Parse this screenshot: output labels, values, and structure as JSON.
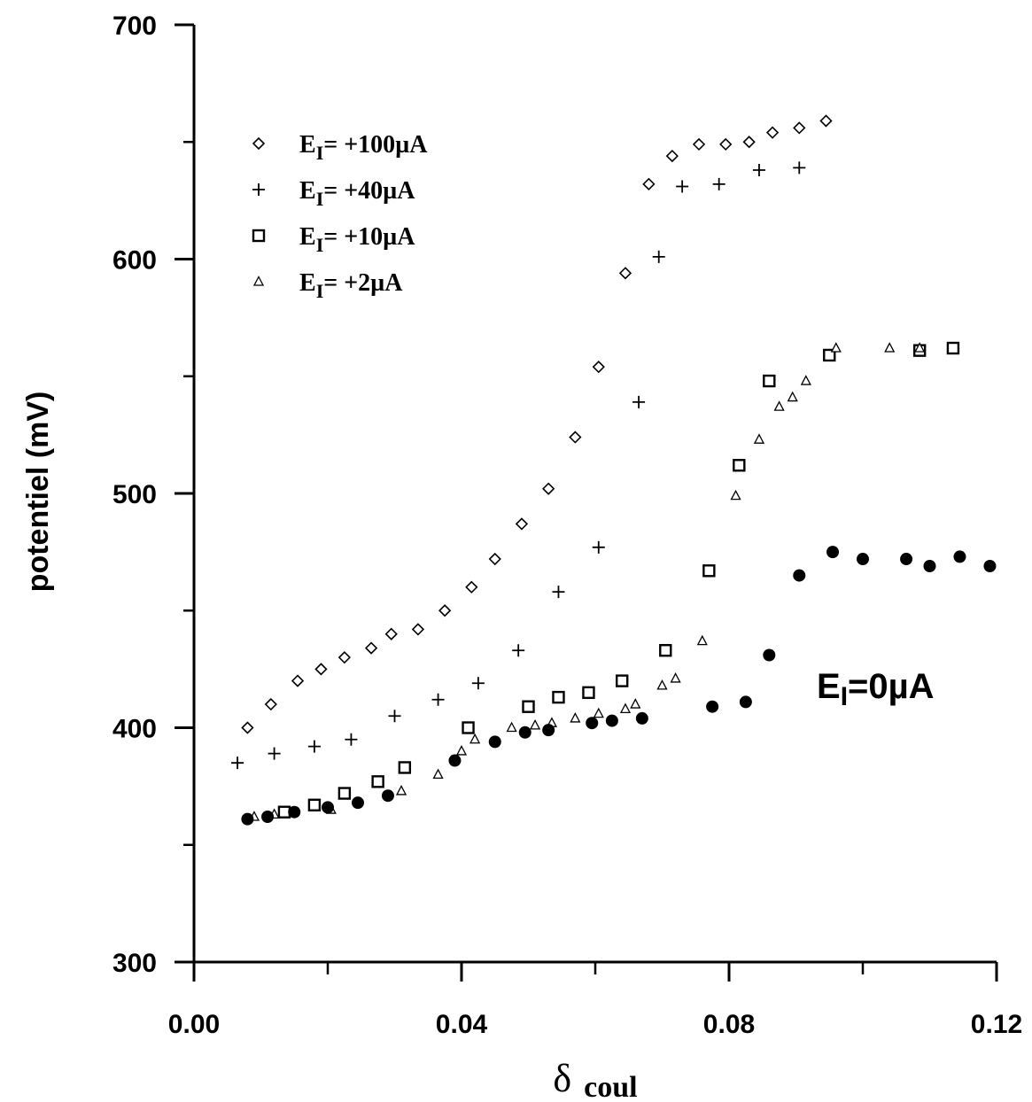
{
  "chart_data": {
    "type": "scatter",
    "title": "",
    "xlabel": "δ",
    "xlabel_sub": "coul",
    "ylabel": "potentiel (mV)",
    "xlim": [
      0.0,
      0.12
    ],
    "ylim": [
      300,
      700
    ],
    "x_major_ticks": [
      0.0,
      0.04,
      0.08,
      0.12
    ],
    "x_tick_labels": [
      "0.00",
      "0.04",
      "0.08",
      "0.12"
    ],
    "x_minor_ticks": [
      0.02,
      0.06,
      0.1
    ],
    "y_major_ticks": [
      300,
      400,
      500,
      600,
      700
    ],
    "y_tick_labels": [
      "300",
      "400",
      "500",
      "600",
      "700"
    ],
    "y_minor_ticks": [
      350,
      450,
      550,
      650
    ],
    "grid": false,
    "legend_position": "top-left",
    "series": [
      {
        "name_main": "E",
        "name_sub": "I",
        "name_rest": "= +100µA",
        "marker": "diamond",
        "x": [
          0.008,
          0.0115,
          0.0155,
          0.019,
          0.0225,
          0.0265,
          0.0295,
          0.0335,
          0.0375,
          0.0415,
          0.045,
          0.049,
          0.053,
          0.057,
          0.0605,
          0.0645,
          0.068,
          0.0715,
          0.0755,
          0.0795,
          0.083,
          0.0865,
          0.0905,
          0.0945
        ],
        "y": [
          400,
          410,
          420,
          425,
          430,
          434,
          440,
          442,
          450,
          460,
          472,
          487,
          502,
          524,
          554,
          594,
          632,
          644,
          649,
          649,
          650,
          654,
          656,
          659
        ]
      },
      {
        "name_main": "E",
        "name_sub": "I",
        "name_rest": "= +40µA",
        "marker": "plus",
        "x": [
          0.0065,
          0.012,
          0.018,
          0.0235,
          0.03,
          0.0365,
          0.0425,
          0.0485,
          0.0545,
          0.0605,
          0.0665,
          0.0695,
          0.073,
          0.0785,
          0.0845,
          0.0905
        ],
        "y": [
          385,
          389,
          392,
          395,
          405,
          412,
          419,
          433,
          458,
          477,
          539,
          601,
          631,
          632,
          638,
          639
        ]
      },
      {
        "name_main": "E",
        "name_sub": "I",
        "name_rest": "= +10µA",
        "marker": "square",
        "x": [
          0.0135,
          0.018,
          0.0225,
          0.0275,
          0.0315,
          0.041,
          0.05,
          0.0545,
          0.059,
          0.064,
          0.0705,
          0.077,
          0.0815,
          0.086,
          0.095,
          0.1085,
          0.1135
        ],
        "y": [
          364,
          367,
          372,
          377,
          383,
          400,
          409,
          413,
          415,
          420,
          433,
          467,
          512,
          548,
          559,
          561,
          562
        ]
      },
      {
        "name_main": "E",
        "name_sub": "I",
        "name_rest": "= +2µA",
        "marker": "triangle",
        "x": [
          0.009,
          0.012,
          0.0205,
          0.031,
          0.0365,
          0.04,
          0.042,
          0.0475,
          0.051,
          0.0535,
          0.057,
          0.0605,
          0.0645,
          0.066,
          0.07,
          0.072,
          0.076,
          0.081,
          0.0845,
          0.0875,
          0.0895,
          0.0915,
          0.096,
          0.104,
          0.1085
        ],
        "y": [
          362,
          363,
          365,
          373,
          380,
          390,
          395,
          400,
          401,
          402,
          404,
          406,
          408,
          410,
          418,
          421,
          437,
          499,
          523,
          537,
          541,
          548,
          562,
          562,
          562
        ]
      },
      {
        "name_main": "E",
        "name_sub": "I",
        "name_rest": "=0µA",
        "marker": "filled-circle",
        "x": [
          0.008,
          0.011,
          0.015,
          0.02,
          0.0245,
          0.029,
          0.039,
          0.045,
          0.0495,
          0.053,
          0.0595,
          0.0625,
          0.067,
          0.0775,
          0.0825,
          0.086,
          0.0905,
          0.0955,
          0.1,
          0.1065,
          0.11,
          0.1145,
          0.119
        ],
        "y": [
          361,
          362,
          364,
          366,
          368,
          371,
          386,
          394,
          398,
          399,
          402,
          403,
          404,
          409,
          411,
          431,
          465,
          475,
          472,
          472,
          469,
          473,
          469
        ]
      }
    ],
    "annotation": {
      "main": "E",
      "sub": "I",
      "rest": "=0µA"
    }
  }
}
